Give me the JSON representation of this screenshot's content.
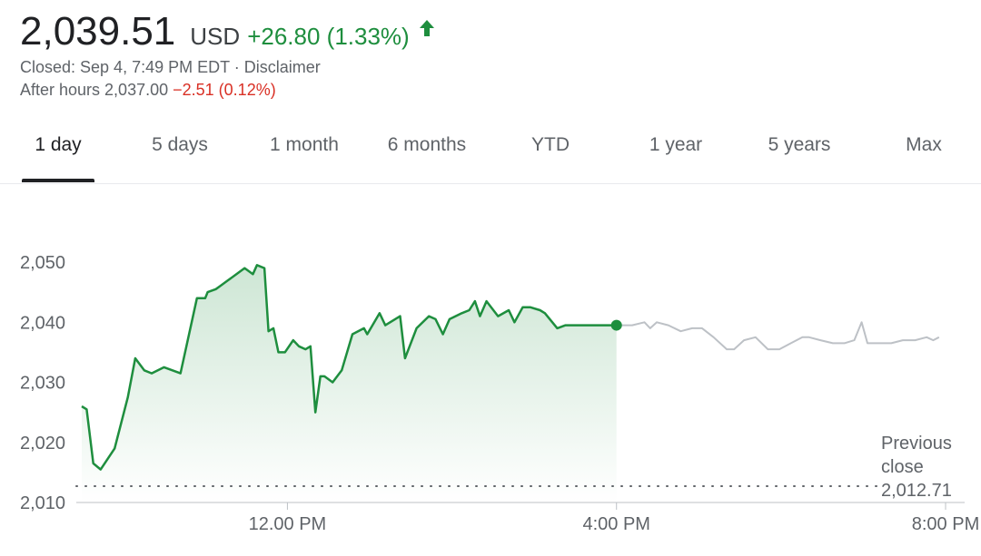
{
  "header": {
    "price": "2,039.51",
    "currency": "USD",
    "change": "+26.80 (1.33%)",
    "closed_text": "Closed: Sep 4, 7:49 PM EDT",
    "separator": " · ",
    "disclaimer": "Disclaimer",
    "after_hours_label": "After hours 2,037.00",
    "after_hours_change": "−2.51 (0.12%)",
    "up_color": "#1e8e3e",
    "down_color": "#d93025",
    "arrow_icon": "arrow-up-icon"
  },
  "tabs": [
    {
      "label": "1 day",
      "active": true
    },
    {
      "label": "5 days"
    },
    {
      "label": "1 month"
    },
    {
      "label": "6 months"
    },
    {
      "label": "YTD"
    },
    {
      "label": "1 year"
    },
    {
      "label": "5 years"
    },
    {
      "label": "Max"
    }
  ],
  "chart_data": {
    "type": "line",
    "y_ticks": [
      "2,050",
      "2,040",
      "2,030",
      "2,020",
      "2,010"
    ],
    "y_tick_values": [
      2050,
      2040,
      2030,
      2020,
      2010
    ],
    "x_ticks": [
      "12.00 PM",
      "4:00 PM",
      "8:00 PM"
    ],
    "x_tick_values": [
      12,
      16,
      20
    ],
    "ylim": [
      2010,
      2050
    ],
    "xlim": [
      9.5,
      20
    ],
    "grid": false,
    "previous_close": {
      "label_lines": [
        "Previous",
        "close",
        "2,012.71"
      ],
      "value": 2012.71
    },
    "series": [
      {
        "segment": "regular",
        "color": "#1e8e3e",
        "x": [
          9.5,
          9.56,
          9.64,
          9.73,
          9.9,
          10.06,
          10.15,
          10.26,
          10.35,
          10.5,
          10.7,
          10.9,
          11.0,
          11.03,
          11.13,
          11.18,
          11.28,
          11.38,
          11.48,
          11.58,
          11.63,
          11.72,
          11.77,
          11.83,
          11.89,
          11.97,
          12.07,
          12.14,
          12.22,
          12.28,
          12.34,
          12.4,
          12.45,
          12.55,
          12.66,
          12.79,
          12.93,
          12.97,
          13.12,
          13.19,
          13.37,
          13.43,
          13.57,
          13.72,
          13.8,
          13.89,
          13.97,
          14.12,
          14.21,
          14.28,
          14.34,
          14.42,
          14.56,
          14.69,
          14.76,
          14.86,
          14.95,
          15.07,
          15.13,
          15.28,
          15.38,
          15.55,
          15.67,
          15.81,
          15.88,
          16.0
        ],
        "y": [
          2026,
          2025.5,
          2016.5,
          2015.5,
          2019,
          2027.5,
          2034,
          2032,
          2031.5,
          2032.5,
          2031.5,
          2044,
          2044,
          2045,
          2045.5,
          2046,
          2047,
          2048,
          2049,
          2048,
          2049.5,
          2049,
          2038.5,
          2039,
          2035,
          2035,
          2037,
          2036,
          2035.5,
          2036,
          2025,
          2031,
          2031,
          2030,
          2032,
          2038,
          2039,
          2038,
          2041.5,
          2039.5,
          2041,
          2034,
          2039,
          2041,
          2040.5,
          2038,
          2040.5,
          2041.5,
          2042,
          2043.5,
          2041,
          2043.5,
          2041,
          2042,
          2040,
          2042.5,
          2042.5,
          2042,
          2041.5,
          2039,
          2039.5,
          2039.5,
          2039.5,
          2039.5,
          2039.5,
          2039.5
        ],
        "fill": true
      },
      {
        "segment": "after-hours",
        "color": "#bdc1c6",
        "x": [
          16.0,
          16.19,
          16.34,
          16.41,
          16.49,
          16.63,
          16.78,
          16.92,
          17.04,
          17.18,
          17.34,
          17.43,
          17.55,
          17.69,
          17.84,
          17.98,
          18.12,
          18.26,
          18.34,
          18.48,
          18.63,
          18.77,
          18.89,
          18.98,
          19.05,
          19.19,
          19.34,
          19.48,
          19.63,
          19.77,
          19.85,
          19.92
        ],
        "y": [
          2039.5,
          2039.5,
          2040,
          2039,
          2040,
          2039.5,
          2038.5,
          2039,
          2039,
          2037.5,
          2035.5,
          2035.5,
          2037,
          2037.5,
          2035.5,
          2035.5,
          2036.5,
          2037.5,
          2037.5,
          2037,
          2036.5,
          2036.5,
          2037,
          2040,
          2036.5,
          2036.5,
          2036.5,
          2037,
          2037,
          2037.5,
          2037,
          2037.5
        ],
        "fill": false
      }
    ],
    "current_point": {
      "x": 16.0,
      "y": 2039.5
    }
  }
}
